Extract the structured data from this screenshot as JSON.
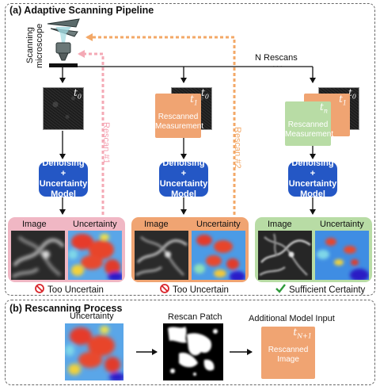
{
  "panel_a": {
    "title": "(a) Adaptive Scanning Pipeline",
    "microscope_label_1": "Scanning",
    "microscope_label_2": "microscope",
    "n_rescans": "N Rescans",
    "ellipsis": "···",
    "rescan1": "Rescan #1",
    "rescan2": "Rescan #2",
    "t0_a": "t",
    "t0_a_sub": "0",
    "t0_b": "t",
    "t0_b_sub": "0",
    "t0_c": "t",
    "t0_c_sub": "0",
    "t1_b": "t",
    "t1_b_sub": "1",
    "t1_c": "t",
    "t1_c_sub": "1",
    "tn_c": "t",
    "tn_c_sub": "n",
    "measure_line1": "Rescanned",
    "measure_line2": "Measurement",
    "model_line1": "Denoising +",
    "model_line2": "Uncertainty",
    "model_line3": "Model",
    "image_label": "Image",
    "uncertainty_label": "Uncertainty",
    "status_1": "Too Uncertain",
    "status_2": "Too Uncertain",
    "status_3": "Sufficient Certainty",
    "colors": {
      "model_blue": "#2457c5",
      "orange": "#f0a472",
      "green": "#b8dca5",
      "pink": "#f0b7c4",
      "rescan_pink": "#f4a9b5",
      "rescan_orange": "#f3a867",
      "no_red": "#d9262c",
      "check_green": "#2e9a3a"
    }
  },
  "panel_b": {
    "title": "(b) Rescanning Process",
    "uncertainty_label": "Uncertainty",
    "patch_label": "Rescan Patch",
    "model_input_label": "Additional Model Input",
    "tn1": "t",
    "tn1_sub": "N+1",
    "image_line1": "Rescanned",
    "image_line2": "Image"
  }
}
